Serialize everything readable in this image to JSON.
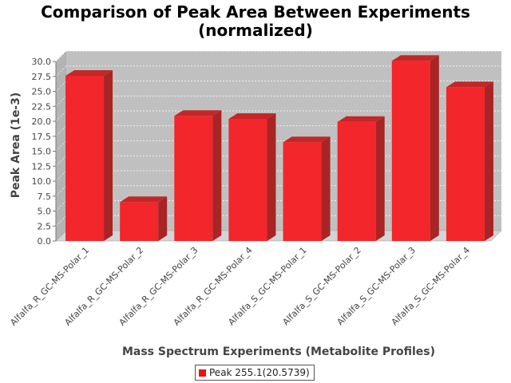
{
  "chart_data": {
    "type": "bar",
    "title": "Comparison of Peak Area Between Experiments",
    "subtitle": "(normalized)",
    "xlabel": "Mass Spectrum Experiments (Metabolite Profiles)",
    "ylabel": "Peak Area (1e-3)",
    "ylim": [
      0,
      30
    ],
    "yticks": [
      "0.0",
      "2.5",
      "5.0",
      "7.5",
      "10.0",
      "12.5",
      "15.0",
      "17.5",
      "20.0",
      "22.5",
      "25.0",
      "27.5",
      "30.0"
    ],
    "grid": true,
    "legend_position": "bottom",
    "categories": [
      "Alfalfa_R_GC-MS-Polar_1",
      "Alfalfa_R_GC-MS-Polar_2",
      "Alfalfa_R_GC-MS-Polar_3",
      "Alfalfa_R_GC-MS-Polar_4",
      "Alfalfa_S_GC-MS-Polar_1",
      "Alfalfa_S_GC-MS-Polar_2",
      "Alfalfa_S_GC-MS-Polar_3",
      "Alfalfa_S_GC-MS-Polar_4"
    ],
    "series": [
      {
        "name": "Peak 255.1(20.5739)",
        "color": "#ee1111",
        "values": [
          27.6,
          6.5,
          20.9,
          20.4,
          16.5,
          19.9,
          30.1,
          25.7
        ]
      }
    ]
  }
}
